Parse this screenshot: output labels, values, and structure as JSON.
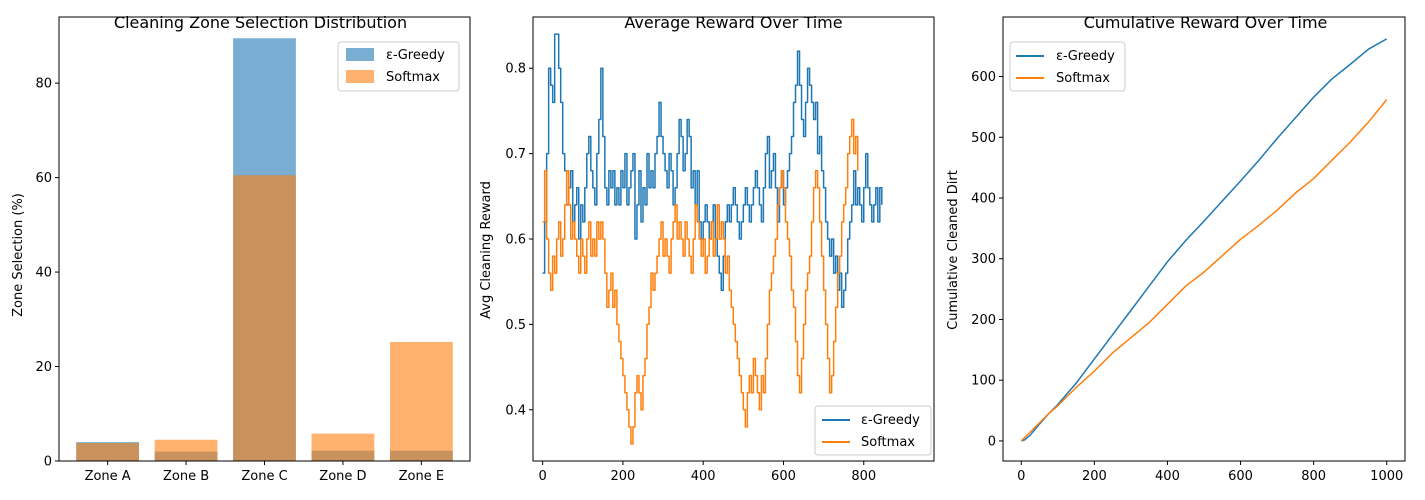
{
  "colors": {
    "egreedy": "#1f77b4",
    "softmax": "#ff7f0e"
  },
  "chart_data": [
    {
      "type": "bar",
      "title": "Cleaning Zone Selection Distribution",
      "xlabel": "",
      "ylabel": "Zone Selection (%)",
      "categories": [
        "Zone A",
        "Zone B",
        "Zone C",
        "Zone D",
        "Zone E"
      ],
      "ylim": [
        0,
        94
      ],
      "yticks": [
        0,
        20,
        40,
        60,
        80
      ],
      "legend_loc": "upper-right",
      "series": [
        {
          "name": "ε-Greedy",
          "values": [
            4.0,
            2.0,
            89.5,
            2.2,
            2.2
          ],
          "alpha": 0.6
        },
        {
          "name": "Softmax",
          "values": [
            3.8,
            4.5,
            60.5,
            5.8,
            25.2
          ],
          "alpha": 0.6
        }
      ]
    },
    {
      "type": "line",
      "title": "Average Reward Over Time",
      "xlabel": "",
      "ylabel": "Avg Cleaning Reward",
      "xlim": [
        -24,
        975
      ],
      "ylim": [
        0.34,
        0.86
      ],
      "xticks": [
        0,
        200,
        400,
        600,
        800
      ],
      "yticks": [
        0.4,
        0.5,
        0.6,
        0.7,
        0.8
      ],
      "legend_loc": "lower-right",
      "step": 5,
      "series": [
        {
          "name": "ε-Greedy",
          "values": [
            0.56,
            0.62,
            0.7,
            0.8,
            0.78,
            0.76,
            0.84,
            0.84,
            0.8,
            0.76,
            0.7,
            0.68,
            0.64,
            0.66,
            0.68,
            0.62,
            0.64,
            0.66,
            0.6,
            0.64,
            0.62,
            0.66,
            0.7,
            0.72,
            0.68,
            0.66,
            0.64,
            0.7,
            0.74,
            0.8,
            0.72,
            0.66,
            0.64,
            0.68,
            0.66,
            0.68,
            0.64,
            0.66,
            0.64,
            0.68,
            0.66,
            0.7,
            0.64,
            0.66,
            0.68,
            0.7,
            0.6,
            0.64,
            0.68,
            0.62,
            0.66,
            0.64,
            0.7,
            0.66,
            0.68,
            0.66,
            0.7,
            0.72,
            0.76,
            0.72,
            0.7,
            0.68,
            0.66,
            0.7,
            0.68,
            0.64,
            0.66,
            0.7,
            0.74,
            0.72,
            0.68,
            0.7,
            0.74,
            0.72,
            0.66,
            0.68,
            0.64,
            0.68,
            0.62,
            0.6,
            0.62,
            0.64,
            0.62,
            0.6,
            0.62,
            0.64,
            0.6,
            0.58,
            0.56,
            0.54,
            0.58,
            0.62,
            0.64,
            0.62,
            0.64,
            0.66,
            0.64,
            0.62,
            0.6,
            0.62,
            0.64,
            0.66,
            0.64,
            0.62,
            0.64,
            0.66,
            0.68,
            0.66,
            0.64,
            0.62,
            0.66,
            0.7,
            0.72,
            0.66,
            0.68,
            0.7,
            0.66,
            0.62,
            0.66,
            0.68,
            0.64,
            0.66,
            0.68,
            0.7,
            0.72,
            0.76,
            0.78,
            0.82,
            0.78,
            0.74,
            0.72,
            0.76,
            0.8,
            0.78,
            0.76,
            0.74,
            0.76,
            0.7,
            0.72,
            0.68,
            0.66,
            0.62,
            0.6,
            0.58,
            0.6,
            0.56,
            0.58,
            0.54,
            0.56,
            0.52,
            0.54,
            0.56,
            0.6,
            0.62,
            0.64,
            0.68,
            0.64,
            0.66,
            0.64,
            0.62,
            0.66,
            0.7,
            0.66,
            0.64,
            0.62,
            0.64,
            0.66,
            0.62,
            0.66,
            0.64
          ]
        },
        {
          "name": "Softmax",
          "values": [
            0.62,
            0.68,
            0.6,
            0.56,
            0.54,
            0.58,
            0.56,
            0.6,
            0.62,
            0.58,
            0.6,
            0.64,
            0.68,
            0.64,
            0.6,
            0.62,
            0.6,
            0.58,
            0.56,
            0.6,
            0.58,
            0.56,
            0.6,
            0.62,
            0.58,
            0.6,
            0.58,
            0.62,
            0.6,
            0.62,
            0.6,
            0.56,
            0.52,
            0.54,
            0.56,
            0.52,
            0.54,
            0.5,
            0.48,
            0.46,
            0.44,
            0.42,
            0.4,
            0.38,
            0.36,
            0.38,
            0.42,
            0.44,
            0.42,
            0.4,
            0.44,
            0.46,
            0.5,
            0.52,
            0.56,
            0.54,
            0.56,
            0.58,
            0.6,
            0.62,
            0.58,
            0.6,
            0.58,
            0.56,
            0.6,
            0.62,
            0.64,
            0.6,
            0.62,
            0.6,
            0.58,
            0.62,
            0.6,
            0.58,
            0.56,
            0.6,
            0.64,
            0.62,
            0.6,
            0.58,
            0.6,
            0.56,
            0.58,
            0.6,
            0.62,
            0.58,
            0.6,
            0.64,
            0.6,
            0.62,
            0.6,
            0.56,
            0.58,
            0.54,
            0.52,
            0.5,
            0.48,
            0.46,
            0.44,
            0.42,
            0.4,
            0.38,
            0.42,
            0.44,
            0.42,
            0.46,
            0.44,
            0.42,
            0.4,
            0.44,
            0.42,
            0.46,
            0.5,
            0.54,
            0.56,
            0.58,
            0.6,
            0.64,
            0.66,
            0.68,
            0.66,
            0.62,
            0.6,
            0.58,
            0.54,
            0.52,
            0.48,
            0.44,
            0.42,
            0.46,
            0.5,
            0.54,
            0.56,
            0.58,
            0.62,
            0.66,
            0.68,
            0.66,
            0.62,
            0.58,
            0.54,
            0.5,
            0.46,
            0.42,
            0.44,
            0.48,
            0.52,
            0.56,
            0.58,
            0.62,
            0.64,
            0.66,
            0.7,
            0.72,
            0.74,
            0.7,
            0.72,
            0.68
          ]
        }
      ]
    },
    {
      "type": "line",
      "title": "Cumulative Reward Over Time",
      "xlabel": "",
      "ylabel": "Cumulative Cleaned Dirt",
      "xlim": [
        -50,
        1050
      ],
      "ylim": [
        -33,
        698
      ],
      "xticks": [
        0,
        200,
        400,
        600,
        800,
        1000
      ],
      "yticks": [
        0,
        100,
        200,
        300,
        400,
        500,
        600
      ],
      "legend_loc": "upper-left",
      "series": [
        {
          "name": "ε-Greedy",
          "x": [
            0,
            10,
            25,
            50,
            75,
            100,
            150,
            200,
            250,
            300,
            350,
            400,
            450,
            500,
            550,
            600,
            650,
            700,
            750,
            800,
            850,
            900,
            950,
            1000
          ],
          "values": [
            0,
            2,
            10,
            28,
            45,
            60,
            95,
            135,
            175,
            215,
            255,
            295,
            330,
            362,
            395,
            428,
            462,
            498,
            532,
            566,
            596,
            620,
            645,
            662
          ]
        },
        {
          "name": "Softmax",
          "x": [
            0,
            10,
            25,
            50,
            75,
            100,
            150,
            200,
            250,
            300,
            350,
            400,
            450,
            500,
            550,
            600,
            650,
            700,
            750,
            800,
            850,
            900,
            950,
            1000
          ],
          "values": [
            0,
            6,
            15,
            30,
            45,
            58,
            88,
            115,
            145,
            170,
            195,
            225,
            255,
            278,
            305,
            332,
            355,
            380,
            408,
            432,
            462,
            492,
            525,
            562
          ]
        }
      ]
    }
  ]
}
